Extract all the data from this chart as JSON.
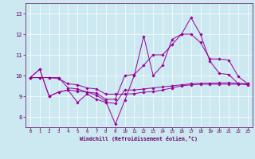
{
  "xlabel": "Windchill (Refroidissement éolien,°C)",
  "bg_color": "#cce8f0",
  "line_color": "#990099",
  "xlim": [
    -0.5,
    23.5
  ],
  "ylim": [
    7.5,
    13.5
  ],
  "xticks": [
    0,
    1,
    2,
    3,
    4,
    5,
    6,
    7,
    8,
    9,
    10,
    11,
    12,
    13,
    14,
    15,
    16,
    17,
    18,
    19,
    20,
    21,
    22,
    23
  ],
  "yticks": [
    8,
    9,
    10,
    11,
    12,
    13
  ],
  "series": [
    [
      9.9,
      10.3,
      9.0,
      9.2,
      9.3,
      8.7,
      9.1,
      8.85,
      8.7,
      8.65,
      9.3,
      9.3,
      9.35,
      9.4,
      9.45,
      9.5,
      9.55,
      9.6,
      9.62,
      9.63,
      9.64,
      9.65,
      9.62,
      9.6
    ],
    [
      9.9,
      10.3,
      9.0,
      9.2,
      9.3,
      9.25,
      9.2,
      9.05,
      8.75,
      7.65,
      8.8,
      10.0,
      11.9,
      10.0,
      10.5,
      11.75,
      12.0,
      12.8,
      12.0,
      10.7,
      10.1,
      10.05,
      9.6,
      9.55
    ],
    [
      9.9,
      9.9,
      9.9,
      9.9,
      9.4,
      9.35,
      9.2,
      9.15,
      8.85,
      8.85,
      10.0,
      10.05,
      10.5,
      11.0,
      11.0,
      11.5,
      12.0,
      12.0,
      11.6,
      10.8,
      10.8,
      10.75,
      9.95,
      9.6
    ],
    [
      9.9,
      9.9,
      9.9,
      9.85,
      9.6,
      9.55,
      9.4,
      9.35,
      9.1,
      9.1,
      9.1,
      9.12,
      9.2,
      9.22,
      9.3,
      9.4,
      9.5,
      9.55,
      9.58,
      9.58,
      9.58,
      9.58,
      9.58,
      9.6
    ]
  ]
}
